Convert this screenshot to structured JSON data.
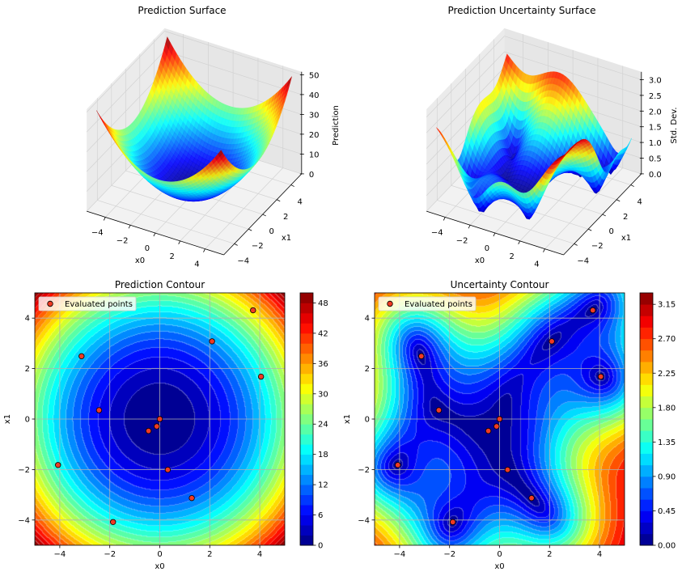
{
  "chart_data": [
    {
      "type": "surface",
      "title": "Prediction Surface",
      "xlabel": "x0",
      "ylabel": "x1",
      "zlabel": "Prediction",
      "xlim": [
        -5,
        5
      ],
      "ylim": [
        -5,
        5
      ],
      "zlim": [
        0,
        50
      ],
      "xtick_labels": [
        "−4",
        "−2",
        "0",
        "2",
        "4"
      ],
      "ytick_labels": [
        "−4",
        "−2",
        "0",
        "2",
        "4"
      ],
      "zticks": [
        0,
        10,
        20,
        30,
        40,
        50
      ],
      "ztick_labels": [
        "0",
        "10",
        "20",
        "30",
        "40",
        "50"
      ],
      "colormap": "jet"
    },
    {
      "type": "surface",
      "title": "Prediction Uncertainty Surface",
      "xlabel": "x0",
      "ylabel": "x1",
      "zlabel": "Std. Dev.",
      "xlim": [
        -5,
        5
      ],
      "ylim": [
        -5,
        5
      ],
      "zlim": [
        0,
        3.2
      ],
      "xtick_labels": [
        "−4",
        "−2",
        "0",
        "2",
        "4"
      ],
      "ytick_labels": [
        "−4",
        "−2",
        "0",
        "2",
        "4"
      ],
      "zticks": [
        0,
        0.5,
        1.0,
        1.5,
        2.0,
        2.5,
        3.0
      ],
      "ztick_labels": [
        "0.0",
        "0.5",
        "1.0",
        "1.5",
        "2.0",
        "2.5",
        "3.0"
      ],
      "colormap": "jet"
    },
    {
      "type": "contour",
      "title": "Prediction Contour",
      "xlabel": "x0",
      "ylabel": "x1",
      "xlim": [
        -5,
        5
      ],
      "ylim": [
        -5,
        5
      ],
      "xticks": [
        -4,
        -2,
        0,
        2,
        4
      ],
      "xtick_labels": [
        "−4",
        "−2",
        "0",
        "2",
        "4"
      ],
      "yticks": [
        -4,
        -2,
        0,
        2,
        4
      ],
      "ytick_labels": [
        "−4",
        "−2",
        "0",
        "2",
        "4"
      ],
      "levels": {
        "min": 0,
        "max": 50,
        "step": 2
      },
      "colorbar_ticks": [
        0,
        6,
        12,
        18,
        24,
        30,
        36,
        42,
        48
      ],
      "colorbar_tick_labels": [
        "0",
        "6",
        "12",
        "18",
        "24",
        "30",
        "36",
        "42",
        "48"
      ],
      "colormap": "jet",
      "grid": true,
      "legend": {
        "label": "Evaluated points",
        "position": "upper left"
      },
      "points": [
        [
          3.73,
          4.31
        ],
        [
          2.09,
          3.08
        ],
        [
          -3.13,
          2.49
        ],
        [
          4.05,
          1.68
        ],
        [
          -2.43,
          0.35
        ],
        [
          0.0,
          0.0
        ],
        [
          -0.45,
          -0.47
        ],
        [
          -0.12,
          -0.29
        ],
        [
          0.32,
          -2.01
        ],
        [
          -4.07,
          -1.82
        ],
        [
          1.28,
          -3.13
        ],
        [
          -1.87,
          -4.08
        ]
      ],
      "point_color": "#f03a23"
    },
    {
      "type": "contour",
      "title": "Uncertainty Contour",
      "xlabel": "x0",
      "ylabel": "x1",
      "xlim": [
        -5,
        5
      ],
      "ylim": [
        -5,
        5
      ],
      "xticks": [
        -4,
        -2,
        0,
        2,
        4
      ],
      "xtick_labels": [
        "−4",
        "−2",
        "0",
        "2",
        "4"
      ],
      "yticks": [
        -4,
        -2,
        0,
        2,
        4
      ],
      "ytick_labels": [
        "−4",
        "−2",
        "0",
        "2",
        "4"
      ],
      "levels": {
        "min": 0,
        "max": 3.3,
        "step": 0.15
      },
      "colorbar_ticks": [
        0,
        0.45,
        0.9,
        1.35,
        1.8,
        2.25,
        2.7,
        3.15
      ],
      "colorbar_tick_labels": [
        "0.00",
        "0.45",
        "0.90",
        "1.35",
        "1.80",
        "2.25",
        "2.70",
        "3.15"
      ],
      "colormap": "jet",
      "grid": true,
      "legend": {
        "label": "Evaluated points",
        "position": "upper left"
      },
      "points": [
        [
          3.73,
          4.31
        ],
        [
          2.09,
          3.08
        ],
        [
          -3.13,
          2.49
        ],
        [
          4.05,
          1.68
        ],
        [
          -2.43,
          0.35
        ],
        [
          0.0,
          0.0
        ],
        [
          -0.45,
          -0.47
        ],
        [
          -0.12,
          -0.29
        ],
        [
          0.32,
          -2.01
        ],
        [
          -4.07,
          -1.82
        ],
        [
          1.28,
          -3.13
        ],
        [
          -1.87,
          -4.08
        ]
      ],
      "point_color": "#f03a23"
    }
  ]
}
